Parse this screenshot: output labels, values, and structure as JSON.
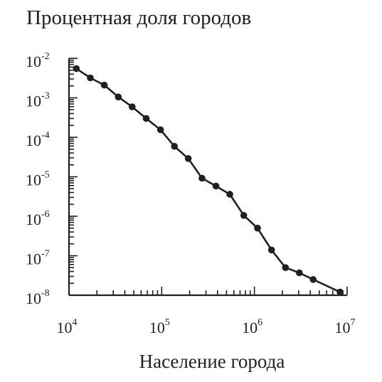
{
  "chart_data": {
    "type": "line",
    "title": "Процентная доля городов",
    "xlabel": "Население города",
    "ylabel": "",
    "x_scale": "log",
    "y_scale": "log",
    "xlim": [
      10000,
      10000000
    ],
    "ylim": [
      1e-08,
      0.01
    ],
    "x_ticks": [
      {
        "base": "10",
        "exp": "4"
      },
      {
        "base": "10",
        "exp": "5"
      },
      {
        "base": "10",
        "exp": "6"
      },
      {
        "base": "10",
        "exp": "7"
      }
    ],
    "y_ticks": [
      {
        "base": "10",
        "exp": "-2"
      },
      {
        "base": "10",
        "exp": "-3"
      },
      {
        "base": "10",
        "exp": "-4"
      },
      {
        "base": "10",
        "exp": "-5"
      },
      {
        "base": "10",
        "exp": "-6"
      },
      {
        "base": "10",
        "exp": "-7"
      },
      {
        "base": "10",
        "exp": "-8"
      }
    ],
    "grid": false,
    "series": [
      {
        "x": [
          12000,
          17000,
          24000,
          34000,
          48000,
          68000,
          97000,
          137000,
          193000,
          272000,
          385000,
          543000,
          767000,
          1080000,
          1530000,
          2160000,
          3050000,
          4300000,
          8400000
        ],
        "y": [
          0.0055,
          0.0032,
          0.0021,
          0.00105,
          0.00059,
          0.0003,
          0.000155,
          5.9e-05,
          2.9e-05,
          9.2e-06,
          5.8e-06,
          3.6e-06,
          1.05e-06,
          5e-07,
          1.4e-07,
          5e-08,
          3.7e-08,
          2.5e-08,
          1.2e-08
        ]
      }
    ],
    "colors": {
      "ink": "#231f20"
    }
  }
}
